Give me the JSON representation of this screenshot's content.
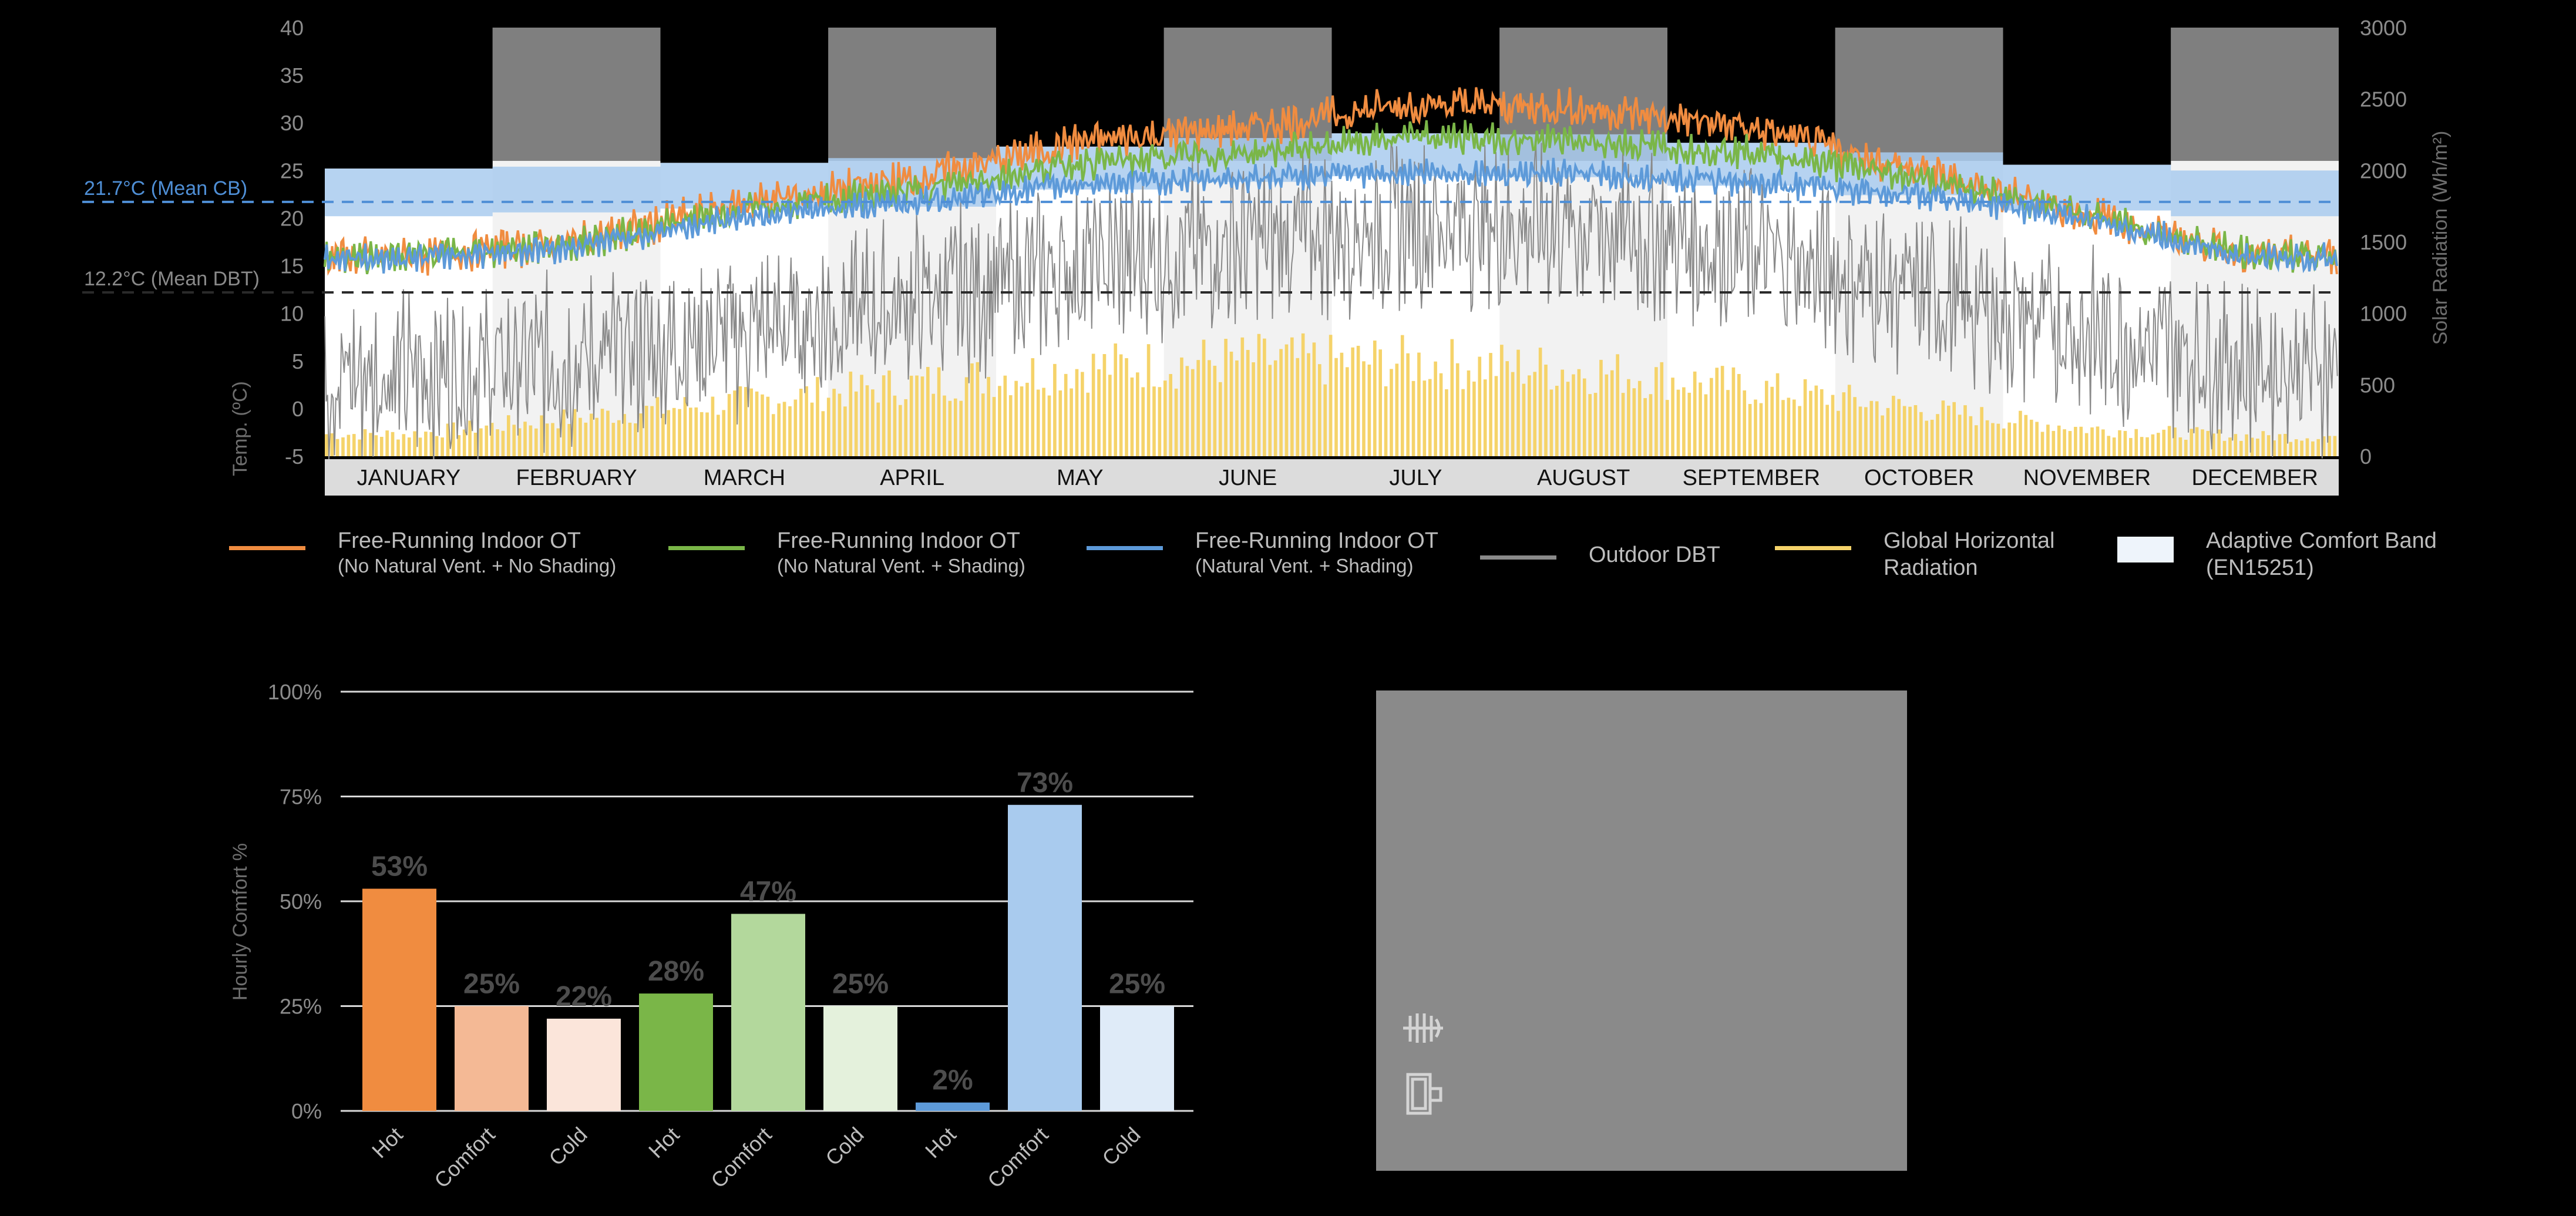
{
  "top_chart": {
    "type": "line",
    "y_left": {
      "label": "Temp. (ºC)",
      "ticks": [
        "40",
        "35",
        "30",
        "25",
        "20",
        "15",
        "10",
        "5",
        "0",
        "-5"
      ],
      "range": [
        -5,
        40
      ]
    },
    "y_right": {
      "label": "Solar Radiation (Wh/m²)",
      "ticks": [
        "3000",
        "2500",
        "2000",
        "1500",
        "1000",
        "500",
        "0"
      ],
      "range": [
        0,
        3000
      ]
    },
    "months": [
      "JANUARY",
      "FEBRUARY",
      "MARCH",
      "APRIL",
      "MAY",
      "JUNE",
      "JULY",
      "AUGUST",
      "SEPTEMBER",
      "OCTOBER",
      "NOVEMBER",
      "DECEMBER"
    ],
    "shaded_months": [
      "FEBRUARY",
      "APRIL",
      "JUNE",
      "AUGUST",
      "OCTOBER",
      "DECEMBER"
    ],
    "annotations": [
      {
        "text": "21.7°C (Mean CB)",
        "value": 21.7,
        "color": "#4f8fd6"
      },
      {
        "text": "12.2°C (Mean DBT)",
        "value": 12.2,
        "color": "#8a8a8a"
      }
    ],
    "comfort_band": {
      "name": "Adaptive Comfort Band (EN15251)",
      "monthly_lower": [
        20.2,
        20.6,
        21.0,
        21.2,
        23.0,
        23.8,
        24.4,
        24.3,
        23.4,
        22.4,
        20.8,
        20.2
      ],
      "monthly_upper": [
        25.2,
        25.4,
        25.8,
        26.3,
        27.5,
        28.4,
        28.9,
        28.8,
        27.9,
        26.9,
        25.6,
        25.0
      ]
    },
    "series": [
      {
        "name": "Free-Running Indoor OT",
        "note": "(No Natural Vent. + No Shading)",
        "color": "#f08c40",
        "monthly_mean": [
          16.0,
          17.5,
          21.5,
          24.0,
          28.0,
          29.5,
          32.0,
          31.5,
          29.5,
          25.0,
          20.5,
          16.0
        ]
      },
      {
        "name": "Free-Running Indoor OT",
        "note": "(No Natural Vent. + Shading)",
        "color": "#7ab648",
        "monthly_mean": [
          16.0,
          17.3,
          20.8,
          22.8,
          25.8,
          26.8,
          28.5,
          28.0,
          27.0,
          24.3,
          20.4,
          16.0
        ]
      },
      {
        "name": "Free-Running Indoor OT",
        "note": "(Natural Vent. + Shading)",
        "color": "#5d9ad9",
        "monthly_mean": [
          15.8,
          17.0,
          20.2,
          21.6,
          23.6,
          24.2,
          24.8,
          24.6,
          23.8,
          22.5,
          20.0,
          15.8
        ]
      },
      {
        "name": "Outdoor DBT",
        "note": "",
        "color": "#8a8a8a",
        "monthly_mean": [
          3.5,
          5.0,
          8.0,
          11.0,
          15.0,
          17.5,
          19.5,
          19.0,
          16.5,
          12.0,
          8.0,
          4.5
        ]
      },
      {
        "name": "Global Horizontal Radiation",
        "note": "",
        "color": "#f5d36a",
        "monthly_daily_peak": [
          200,
          350,
          500,
          650,
          800,
          870,
          850,
          780,
          620,
          430,
          250,
          180
        ]
      }
    ]
  },
  "legend": [
    {
      "label": "Free-Running Indoor OT",
      "sub": "(No Natural Vent. + No Shading)",
      "color": "#f08c40",
      "kind": "line"
    },
    {
      "label": "Free-Running Indoor OT",
      "sub": "(No Natural Vent. + Shading)",
      "color": "#7ab648",
      "kind": "line"
    },
    {
      "label": "Free-Running Indoor OT",
      "sub": "(Natural Vent. + Shading)",
      "color": "#5d9ad9",
      "kind": "line"
    },
    {
      "label": "Outdoor DBT",
      "sub": "",
      "color": "#8a8a8a",
      "kind": "line"
    },
    {
      "label": "Global Horizontal",
      "sub": "Radiation",
      "color": "#f5d36a",
      "kind": "line"
    },
    {
      "label": "Adaptive Comfort Band",
      "sub": "(EN15251)",
      "color": "#eef4fb",
      "kind": "swatch"
    }
  ],
  "chart_data": {
    "type": "bar",
    "ylabel": "Hourly Comfort %",
    "yticks": [
      "100%",
      "75%",
      "50%",
      "25%",
      "0%"
    ],
    "ylim": [
      0,
      100
    ],
    "categories": [
      "Hot",
      "Comfort",
      "Cold",
      "Hot",
      "Comfort",
      "Cold",
      "Hot",
      "Comfort",
      "Cold"
    ],
    "values": [
      53,
      25,
      22,
      28,
      47,
      25,
      2,
      73,
      25
    ],
    "labels": [
      "53%",
      "25%",
      "22%",
      "28%",
      "47%",
      "25%",
      "2%",
      "73%",
      "25%"
    ],
    "colors": [
      "#f08c40",
      "#f4b995",
      "#fbe5da",
      "#7ab648",
      "#b3d89c",
      "#e4f1dc",
      "#5d9ad9",
      "#a9cbee",
      "#dfebf8"
    ]
  },
  "panel": {
    "icons": [
      "radiator-icon",
      "window-icon"
    ]
  }
}
